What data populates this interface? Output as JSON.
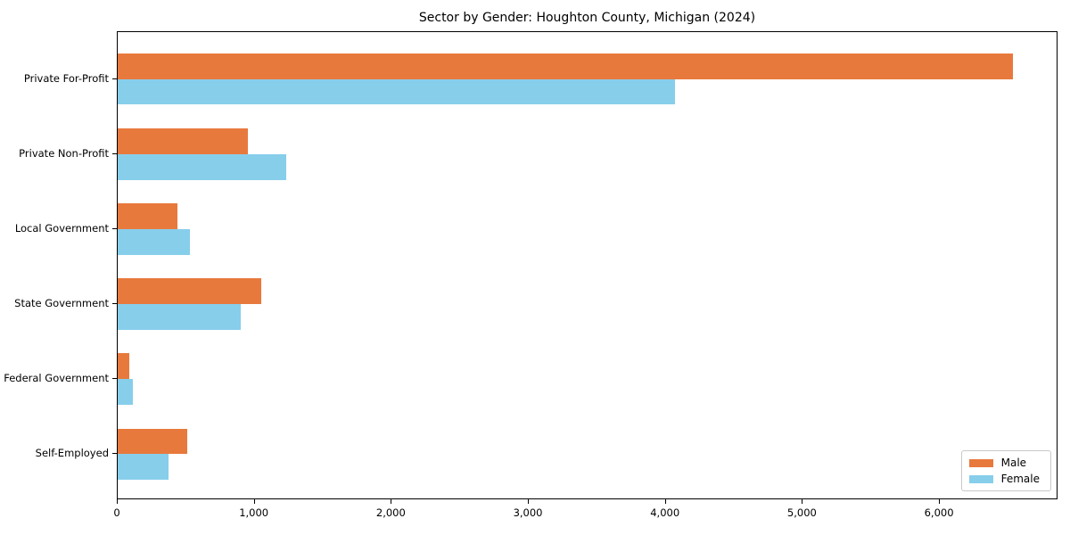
{
  "chart_data": {
    "type": "bar",
    "orientation": "horizontal",
    "title": "Sector by Gender: Houghton County, Michigan (2024)",
    "categories": [
      "Private For-Profit",
      "Private Non-Profit",
      "Local Government",
      "State Government",
      "Federal Government",
      "Self-Employed"
    ],
    "series": [
      {
        "name": "Male",
        "color": "#e8793d",
        "values": [
          6530,
          950,
          435,
          1050,
          85,
          510
        ]
      },
      {
        "name": "Female",
        "color": "#87ceeb",
        "values": [
          4070,
          1230,
          530,
          895,
          110,
          370
        ]
      }
    ],
    "xlabel": "",
    "ylabel": "",
    "xlim": [
      0,
      6865
    ],
    "xticks": [
      0,
      1000,
      2000,
      3000,
      4000,
      5000,
      6000
    ],
    "xtick_labels": [
      "0",
      "1,000",
      "2,000",
      "3,000",
      "4,000",
      "5,000",
      "6,000"
    ],
    "grid": false,
    "legend": {
      "position": "lower right",
      "entries": [
        "Male",
        "Female"
      ]
    }
  },
  "colors": {
    "male": "#e8793d",
    "female": "#87ceeb",
    "spine": "#000000",
    "legend_border": "#c9c9c9",
    "background": "#ffffff",
    "text": "#000000"
  }
}
